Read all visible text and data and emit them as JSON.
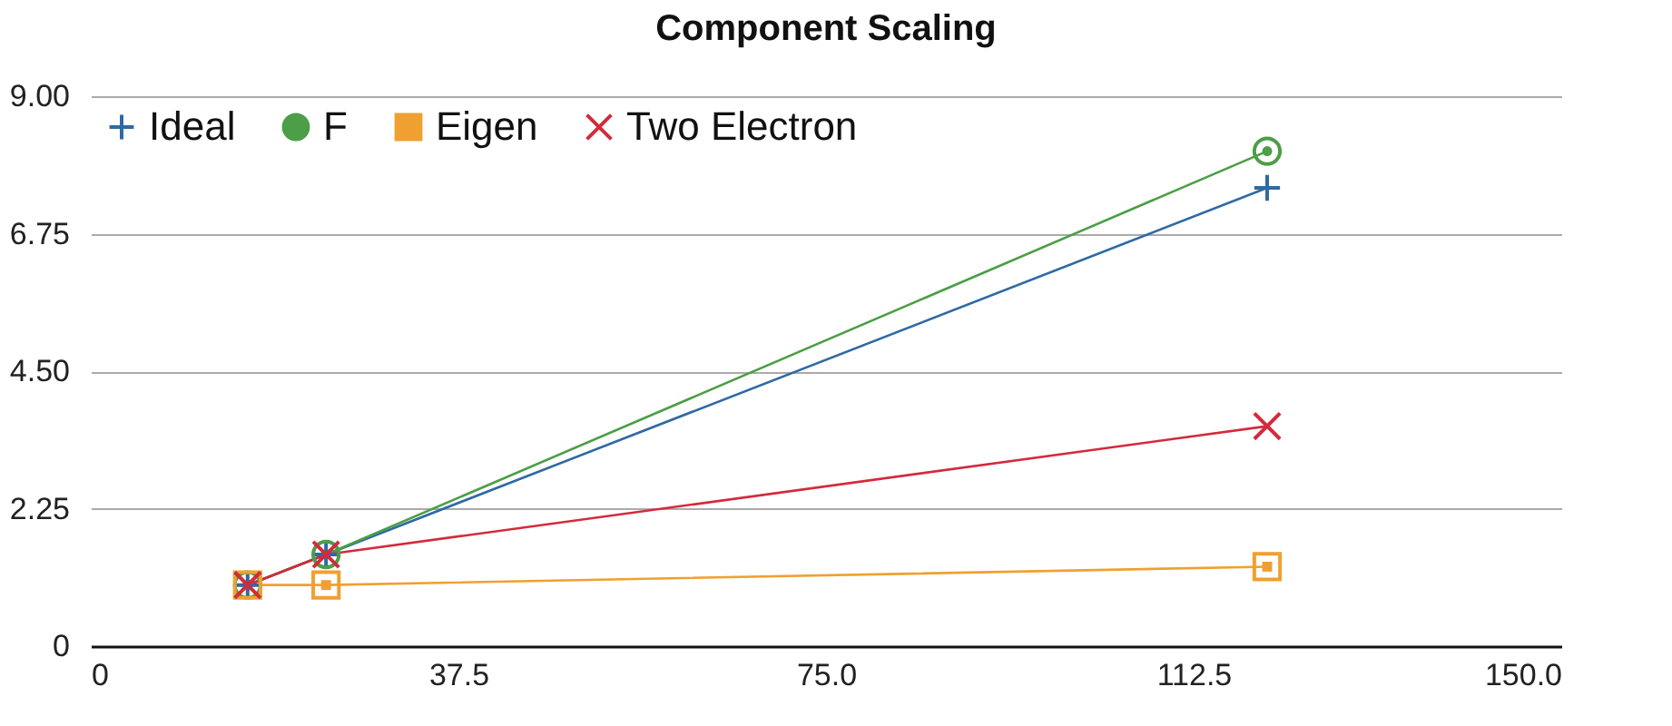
{
  "chart_data": {
    "type": "line",
    "title": "Component Scaling",
    "x": [
      16,
      24,
      120
    ],
    "xlim": [
      0,
      150
    ],
    "xticks": [
      0,
      37.5,
      {
        "value": 75,
        "label": "75.0"
      },
      112.5,
      {
        "value": 150,
        "label": "150.0"
      }
    ],
    "ylim": [
      0,
      9
    ],
    "yticks": [
      0,
      {
        "value": 2.25,
        "label": "2.25"
      },
      {
        "value": 4.5,
        "label": "4.50"
      },
      {
        "value": 6.75,
        "label": "6.75"
      },
      {
        "value": 9,
        "label": "9.00"
      }
    ],
    "grid": "y",
    "legend": "top left",
    "line_style": "solid",
    "series": [
      {
        "name": "Ideal",
        "color": "#2f6aa3",
        "marker": "plus",
        "values": [
          1,
          1.5,
          7.5
        ]
      },
      {
        "name": "F",
        "color": "#4c9e47",
        "marker": "circle",
        "values": [
          1,
          1.5,
          8.1
        ]
      },
      {
        "name": "Eigen",
        "color": "#f0a030",
        "marker": "square",
        "values": [
          1,
          1,
          1.3
        ]
      },
      {
        "name": "Two Electron",
        "color": "#d42a3c",
        "marker": "cross",
        "values": [
          1,
          1.5,
          3.6
        ]
      }
    ]
  }
}
